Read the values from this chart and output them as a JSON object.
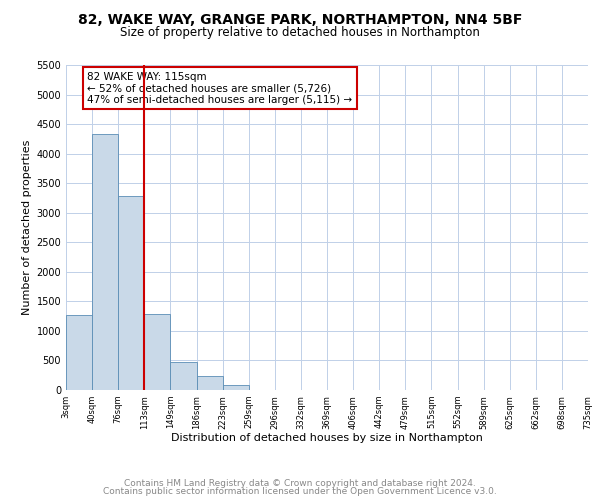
{
  "title": "82, WAKE WAY, GRANGE PARK, NORTHAMPTON, NN4 5BF",
  "subtitle": "Size of property relative to detached houses in Northampton",
  "xlabel": "Distribution of detached houses by size in Northampton",
  "ylabel": "Number of detached properties",
  "bar_color": "#c9d9e8",
  "bar_edge_color": "#5a8db5",
  "grid_color": "#c0d0e8",
  "vline_color": "#cc0000",
  "annotation_text": "82 WAKE WAY: 115sqm\n← 52% of detached houses are smaller (5,726)\n47% of semi-detached houses are larger (5,115) →",
  "annotation_box_color": "#ffffff",
  "annotation_box_edge": "#cc0000",
  "bin_labels": [
    "3sqm",
    "40sqm",
    "76sqm",
    "113sqm",
    "149sqm",
    "186sqm",
    "223sqm",
    "259sqm",
    "296sqm",
    "332sqm",
    "369sqm",
    "406sqm",
    "442sqm",
    "479sqm",
    "515sqm",
    "552sqm",
    "589sqm",
    "625sqm",
    "662sqm",
    "698sqm",
    "735sqm"
  ],
  "bar_heights": [
    1270,
    4330,
    3290,
    1290,
    480,
    235,
    85,
    0,
    0,
    0,
    0,
    0,
    0,
    0,
    0,
    0,
    0,
    0,
    0,
    0
  ],
  "ylim": [
    0,
    5500
  ],
  "yticks": [
    0,
    500,
    1000,
    1500,
    2000,
    2500,
    3000,
    3500,
    4000,
    4500,
    5000,
    5500
  ],
  "footer_line1": "Contains HM Land Registry data © Crown copyright and database right 2024.",
  "footer_line2": "Contains public sector information licensed under the Open Government Licence v3.0.",
  "title_fontsize": 10,
  "subtitle_fontsize": 8.5,
  "footer_fontsize": 6.5,
  "xlabel_fontsize": 8,
  "ylabel_fontsize": 8,
  "ytick_fontsize": 7,
  "xtick_fontsize": 6
}
